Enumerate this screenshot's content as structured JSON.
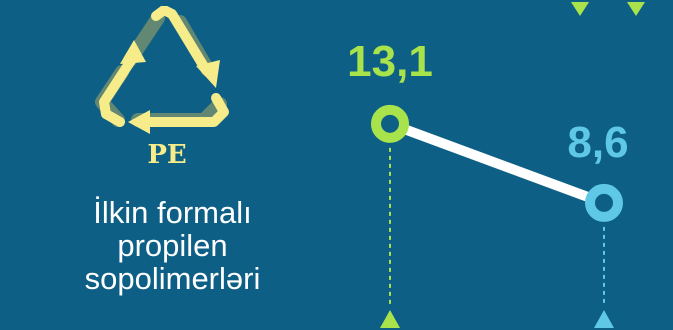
{
  "colors": {
    "background": "#0d5f86",
    "recycle_symbol": "#f7ec8a",
    "series_1": "#a9e34b",
    "series_2": "#5ec8e6",
    "connector": "#ffffff",
    "text": "#ffffff"
  },
  "icons": {
    "recycle": "recycle-triangle-icon"
  },
  "resin_code": "PE",
  "material_lines": [
    "İlkin formalı",
    "propilen",
    "sopolimerləri"
  ],
  "chart_data": {
    "type": "line",
    "title": "",
    "xlabel": "",
    "ylabel": "",
    "x": [
      1,
      2
    ],
    "y": [
      13.1,
      8.6
    ],
    "value_labels": [
      "13,1",
      "8,6"
    ],
    "point_colors": [
      "#a9e34b",
      "#5ec8e6"
    ]
  }
}
